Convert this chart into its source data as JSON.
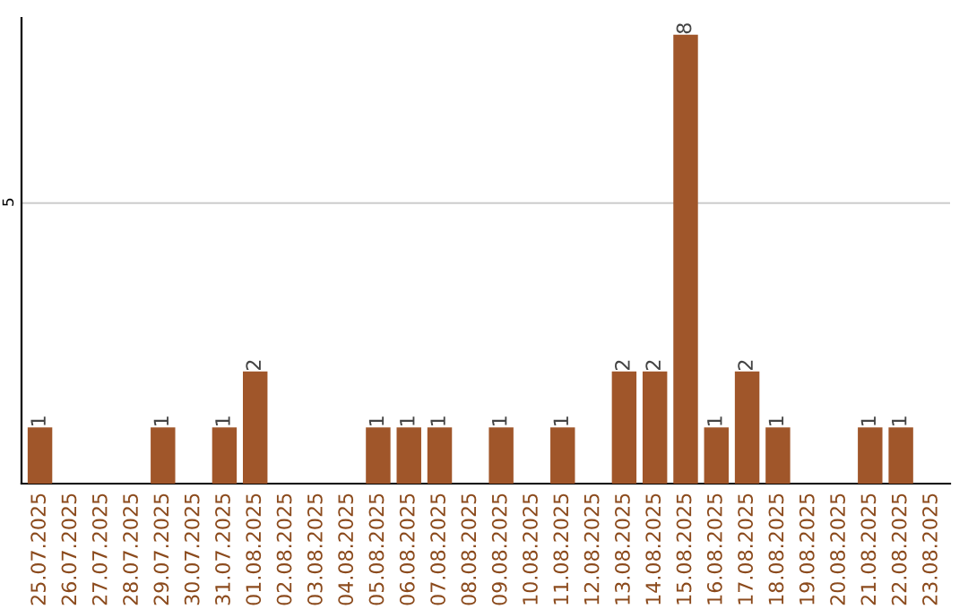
{
  "chart_data": {
    "type": "bar",
    "categories": [
      "25.07.2025",
      "26.07.2025",
      "27.07.2025",
      "28.07.2025",
      "29.07.2025",
      "30.07.2025",
      "31.07.2025",
      "01.08.2025",
      "02.08.2025",
      "03.08.2025",
      "04.08.2025",
      "05.08.2025",
      "06.08.2025",
      "07.08.2025",
      "08.08.2025",
      "09.08.2025",
      "10.08.2025",
      "11.08.2025",
      "12.08.2025",
      "13.08.2025",
      "14.08.2025",
      "15.08.2025",
      "16.08.2025",
      "17.08.2025",
      "18.08.2025",
      "19.08.2025",
      "20.08.2025",
      "21.08.2025",
      "22.08.2025",
      "23.08.2025"
    ],
    "values": [
      1,
      0,
      0,
      0,
      1,
      0,
      1,
      2,
      0,
      0,
      0,
      1,
      1,
      1,
      0,
      1,
      0,
      1,
      0,
      2,
      2,
      8,
      1,
      2,
      1,
      0,
      0,
      1,
      1,
      0
    ],
    "value_labels": [
      "1",
      null,
      null,
      null,
      "1",
      null,
      "1",
      "2",
      null,
      null,
      null,
      "1",
      "1",
      "1",
      null,
      "1",
      null,
      "1",
      null,
      "2",
      "2",
      "8",
      "1",
      "2",
      "1",
      null,
      null,
      "1",
      "1",
      null
    ],
    "color": "#a0562a",
    "ylim": [
      0,
      8.3
    ],
    "yticks": [
      5
    ],
    "grid": "y",
    "legend": false
  }
}
